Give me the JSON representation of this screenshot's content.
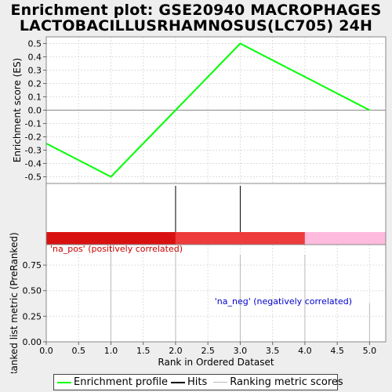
{
  "title_lines": [
    "Enrichment plot: GSE20940 MACROPHAGES",
    "LACTOBACILLUSRHAMNOSUS(LC705) 24H"
  ],
  "colors": {
    "profile": "#00ff00",
    "hits": "#000000",
    "rank": "#bbbbbb",
    "pos_label": "#cc0000",
    "neg_label": "#0000cc",
    "bar_segments": [
      "#d91010",
      "#ee3b3b",
      "#ffbbdd"
    ]
  },
  "legend": {
    "profile": "Enrichment profile",
    "hits": "Hits",
    "rank": "Ranking metric scores"
  },
  "chart_data": {
    "type": "line",
    "es_panel": {
      "ylabel": "Enrichment score (ES)",
      "ylim": [
        -0.55,
        0.55
      ],
      "yticks": [
        0.5,
        0.4,
        0.3,
        0.2,
        0.1,
        0.0,
        -0.1,
        -0.2,
        -0.3,
        -0.4,
        -0.5
      ],
      "ytick_labels": [
        "0.5",
        "0.4",
        "0.3",
        "0.2",
        "0.1",
        "0.0",
        "-0.1",
        "-0.2",
        "-0.3",
        "-0.4",
        "-0.5"
      ],
      "series": [
        {
          "x": [
            0,
            1,
            2,
            3,
            5
          ],
          "y": [
            -0.25,
            -0.5,
            0.0,
            0.5,
            0.0
          ]
        }
      ],
      "grid": true
    },
    "hits_panel": {
      "hits_x": [
        2,
        3
      ],
      "bar_segments": [
        {
          "from": 0,
          "to": 2
        },
        {
          "from": 2,
          "to": 4
        },
        {
          "from": 4,
          "to": 5.25
        }
      ]
    },
    "rank_panel": {
      "ylabel": "Ranked list metric (PreRanked)",
      "ylim": [
        0,
        0.95
      ],
      "yticks": [
        0,
        0.25,
        0.5,
        0.75
      ],
      "ytick_labels": [
        "0.00",
        "0.25",
        "0.50",
        "0.75"
      ],
      "bars": [
        {
          "x": 1,
          "y": 0.95
        },
        {
          "x": 2,
          "y": 0.9
        },
        {
          "x": 3,
          "y": 0.85
        },
        {
          "x": 4,
          "y": 0.85
        },
        {
          "x": 5,
          "y": 0.38
        }
      ],
      "pos_label": "'na_pos' (positively correlated)",
      "neg_label": "'na_neg' (negatively correlated)"
    },
    "xlabel": "Rank in Ordered Dataset",
    "xlim": [
      0,
      5.25
    ],
    "xticks": [
      0,
      0.5,
      1,
      1.5,
      2,
      2.5,
      3,
      3.5,
      4,
      4.5,
      5
    ],
    "xtick_labels": [
      "0.0",
      "0.5",
      "1.0",
      "1.5",
      "2.0",
      "2.5",
      "3.0",
      "3.5",
      "4.0",
      "4.5",
      "5.0"
    ]
  }
}
